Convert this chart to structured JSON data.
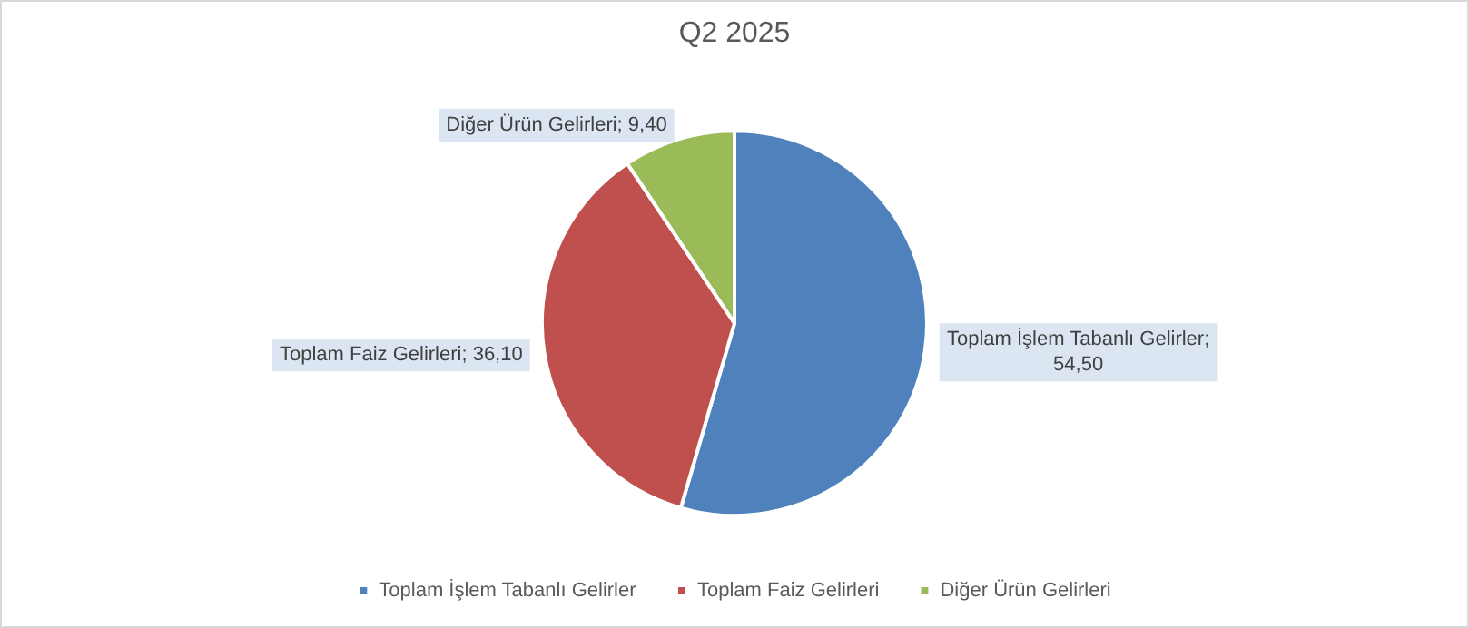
{
  "chart_data": {
    "type": "pie",
    "title": "Q2 2025",
    "categories": [
      "Toplam İşlem Tabanlı Gelirler",
      "Toplam Faiz Gelirleri",
      "Diğer Ürün Gelirleri"
    ],
    "values": [
      54.5,
      36.1,
      9.4
    ],
    "value_labels": [
      "Toplam İşlem Tabanlı Gelirler; 54,50",
      "Toplam Faiz Gelirleri; 36,10",
      "Diğer Ürün Gelirleri; 9,40"
    ],
    "colors": [
      "#4f81bd",
      "#c0504d",
      "#9bbb59"
    ],
    "legend": "bottom"
  }
}
